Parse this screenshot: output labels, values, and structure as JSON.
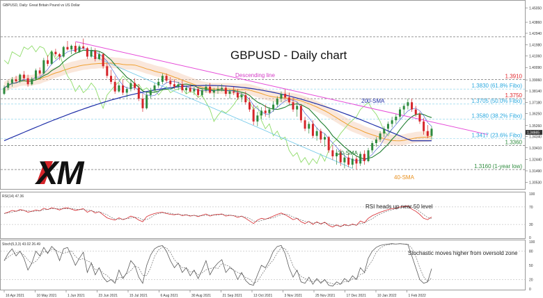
{
  "chart_data": {
    "type": "candlestick",
    "header": "GBPUSD, Daily: Great Britain Pound vs US Dollar",
    "title": "GBPUSD - Daily chart",
    "logo_text": "XM",
    "price_axis": {
      "ylim": [
        1.301,
        1.4525
      ],
      "ticks": [
        "1.45050",
        "1.43860",
        "1.42940",
        "1.41980",
        "1.41060",
        "1.40090",
        "1.39060",
        "1.38140",
        "1.37180",
        "1.36250",
        "1.35260",
        "1.34340",
        "1.33410",
        "1.32440",
        "1.31490",
        "1.30530"
      ],
      "current_price": "1.34665"
    },
    "date_axis": {
      "labels": [
        "16 Apr 2021",
        "10 May 2021",
        "1 Jun 2021",
        "23 Jun 2021",
        "15 Jul 2021",
        "6 Aug 2021",
        "30 Aug 2021",
        "21 Sep 2021",
        "13 Oct 2021",
        "3 Nov 2021",
        "25 Nov 2021",
        "17 Dec 2021",
        "10 Jan 2022",
        "1 Feb 2022"
      ]
    },
    "candles": [
      [
        1.379,
        1.386,
        1.378,
        1.384
      ],
      [
        1.384,
        1.39,
        1.382,
        1.388
      ],
      [
        1.388,
        1.393,
        1.385,
        1.391
      ],
      [
        1.391,
        1.394,
        1.388,
        1.3895
      ],
      [
        1.3895,
        1.396,
        1.388,
        1.395
      ],
      [
        1.395,
        1.398,
        1.39,
        1.392
      ],
      [
        1.392,
        1.395,
        1.385,
        1.387
      ],
      [
        1.387,
        1.393,
        1.386,
        1.3915
      ],
      [
        1.3915,
        1.4,
        1.39,
        1.3985
      ],
      [
        1.3985,
        1.401,
        1.394,
        1.396
      ],
      [
        1.396,
        1.409,
        1.395,
        1.407
      ],
      [
        1.407,
        1.411,
        1.402,
        1.404
      ],
      [
        1.404,
        1.415,
        1.403,
        1.414
      ],
      [
        1.414,
        1.4165,
        1.41,
        1.412
      ],
      [
        1.412,
        1.413,
        1.407,
        1.41
      ],
      [
        1.41,
        1.419,
        1.409,
        1.418
      ],
      [
        1.418,
        1.423,
        1.415,
        1.416
      ],
      [
        1.416,
        1.42,
        1.412,
        1.419
      ],
      [
        1.419,
        1.422,
        1.413,
        1.414
      ],
      [
        1.414,
        1.42,
        1.413,
        1.4185
      ],
      [
        1.4185,
        1.425,
        1.416,
        1.417
      ],
      [
        1.417,
        1.418,
        1.408,
        1.41
      ],
      [
        1.41,
        1.418,
        1.409,
        1.415
      ],
      [
        1.415,
        1.417,
        1.406,
        1.408
      ],
      [
        1.408,
        1.414,
        1.407,
        1.412
      ],
      [
        1.412,
        1.413,
        1.4,
        1.402
      ],
      [
        1.402,
        1.405,
        1.392,
        1.394
      ],
      [
        1.394,
        1.399,
        1.387,
        1.389
      ],
      [
        1.389,
        1.394,
        1.379,
        1.381
      ],
      [
        1.381,
        1.388,
        1.38,
        1.386
      ],
      [
        1.386,
        1.391,
        1.378,
        1.38
      ],
      [
        1.38,
        1.385,
        1.376,
        1.383
      ],
      [
        1.383,
        1.39,
        1.381,
        1.388
      ],
      [
        1.388,
        1.392,
        1.382,
        1.384
      ],
      [
        1.384,
        1.387,
        1.373,
        1.375
      ],
      [
        1.375,
        1.379,
        1.364,
        1.367
      ],
      [
        1.367,
        1.38,
        1.366,
        1.378
      ],
      [
        1.378,
        1.384,
        1.375,
        1.382
      ],
      [
        1.382,
        1.388,
        1.38,
        1.386
      ],
      [
        1.386,
        1.392,
        1.384,
        1.389
      ],
      [
        1.389,
        1.396,
        1.387,
        1.394
      ],
      [
        1.394,
        1.396,
        1.388,
        1.39
      ],
      [
        1.39,
        1.393,
        1.385,
        1.387
      ],
      [
        1.387,
        1.391,
        1.383,
        1.385
      ],
      [
        1.385,
        1.389,
        1.382,
        1.387
      ],
      [
        1.387,
        1.39,
        1.38,
        1.382
      ],
      [
        1.382,
        1.386,
        1.379,
        1.384
      ],
      [
        1.384,
        1.387,
        1.38,
        1.381
      ],
      [
        1.381,
        1.385,
        1.378,
        1.383
      ],
      [
        1.383,
        1.385,
        1.376,
        1.378
      ],
      [
        1.378,
        1.384,
        1.376,
        1.382
      ],
      [
        1.382,
        1.387,
        1.38,
        1.385
      ],
      [
        1.385,
        1.388,
        1.379,
        1.38
      ],
      [
        1.38,
        1.384,
        1.376,
        1.382
      ],
      [
        1.382,
        1.386,
        1.379,
        1.383
      ],
      [
        1.383,
        1.387,
        1.381,
        1.384
      ],
      [
        1.384,
        1.386,
        1.377,
        1.379
      ],
      [
        1.379,
        1.383,
        1.375,
        1.381
      ],
      [
        1.381,
        1.385,
        1.378,
        1.38
      ],
      [
        1.38,
        1.383,
        1.374,
        1.376
      ],
      [
        1.376,
        1.38,
        1.372,
        1.378
      ],
      [
        1.378,
        1.381,
        1.37,
        1.372
      ],
      [
        1.372,
        1.376,
        1.364,
        1.366
      ],
      [
        1.366,
        1.37,
        1.353,
        1.356
      ],
      [
        1.356,
        1.364,
        1.352,
        1.361
      ],
      [
        1.361,
        1.368,
        1.358,
        1.365
      ],
      [
        1.365,
        1.37,
        1.36,
        1.363
      ],
      [
        1.363,
        1.368,
        1.359,
        1.366
      ],
      [
        1.366,
        1.373,
        1.364,
        1.37
      ],
      [
        1.37,
        1.377,
        1.368,
        1.375
      ],
      [
        1.375,
        1.381,
        1.372,
        1.379
      ],
      [
        1.379,
        1.383,
        1.374,
        1.376
      ],
      [
        1.376,
        1.38,
        1.37,
        1.372
      ],
      [
        1.372,
        1.376,
        1.364,
        1.366
      ],
      [
        1.366,
        1.372,
        1.36,
        1.369
      ],
      [
        1.369,
        1.37,
        1.355,
        1.357
      ],
      [
        1.357,
        1.36,
        1.348,
        1.35
      ],
      [
        1.35,
        1.356,
        1.346,
        1.354
      ],
      [
        1.354,
        1.357,
        1.342,
        1.344
      ],
      [
        1.344,
        1.351,
        1.34,
        1.348
      ],
      [
        1.348,
        1.35,
        1.338,
        1.341
      ],
      [
        1.341,
        1.346,
        1.335,
        1.343
      ],
      [
        1.343,
        1.344,
        1.33,
        1.332
      ],
      [
        1.332,
        1.336,
        1.324,
        1.327
      ],
      [
        1.327,
        1.333,
        1.32,
        1.33
      ],
      [
        1.33,
        1.333,
        1.319,
        1.322
      ],
      [
        1.322,
        1.329,
        1.317,
        1.326
      ],
      [
        1.326,
        1.33,
        1.318,
        1.32
      ],
      [
        1.32,
        1.328,
        1.317,
        1.325
      ],
      [
        1.325,
        1.327,
        1.316,
        1.321
      ],
      [
        1.321,
        1.331,
        1.319,
        1.329
      ],
      [
        1.329,
        1.332,
        1.32,
        1.323
      ],
      [
        1.323,
        1.334,
        1.322,
        1.332
      ],
      [
        1.332,
        1.34,
        1.33,
        1.338
      ],
      [
        1.338,
        1.343,
        1.335,
        1.341
      ],
      [
        1.341,
        1.348,
        1.339,
        1.346
      ],
      [
        1.346,
        1.352,
        1.343,
        1.35
      ],
      [
        1.35,
        1.356,
        1.347,
        1.354
      ],
      [
        1.354,
        1.36,
        1.351,
        1.357
      ],
      [
        1.357,
        1.362,
        1.354,
        1.36
      ],
      [
        1.36,
        1.368,
        1.358,
        1.366
      ],
      [
        1.366,
        1.371,
        1.362,
        1.369
      ],
      [
        1.369,
        1.375,
        1.366,
        1.372
      ],
      [
        1.372,
        1.375,
        1.364,
        1.366
      ],
      [
        1.366,
        1.369,
        1.36,
        1.362
      ],
      [
        1.362,
        1.364,
        1.354,
        1.356
      ],
      [
        1.356,
        1.359,
        1.345,
        1.348
      ],
      [
        1.348,
        1.353,
        1.342,
        1.344
      ],
      [
        1.344,
        1.352,
        1.341,
        1.35
      ]
    ],
    "levels": [
      {
        "label": "1.3910",
        "value": 1.391,
        "color": "#e0262b"
      },
      {
        "label": "1.3830 (61.8% Fibo)",
        "value": 1.383,
        "color": "#2aa9df"
      },
      {
        "label": "1.3750",
        "value": 1.375,
        "color": "#e0262b"
      },
      {
        "label": "1.3705 (50.0% Fibo)",
        "value": 1.3705,
        "color": "#2aa9df"
      },
      {
        "label": "1.3580 (38.2% Fibo)",
        "value": 1.358,
        "color": "#2aa9df"
      },
      {
        "label": "1.3417 (23.6% Fibo)",
        "value": 1.3417,
        "color": "#2aa9df"
      },
      {
        "label": "1.3360",
        "value": 1.336,
        "color": "#2e8b3e"
      },
      {
        "label": "1.3160 (1-year low)",
        "value": 1.316,
        "color": "#2e8b3e"
      }
    ],
    "annotations": {
      "descending_line": "Descending line",
      "sma200": "200-SMA",
      "sma20": "20-SMA",
      "sma40": "40-SMA"
    },
    "series_colors": {
      "up": "#2e8b3e",
      "down": "#d6252a",
      "sma200": "#1f2fa8",
      "sma20": "#1e7d2e",
      "sma40": "#f0a030",
      "trendline": "#e64ad8",
      "lagging": "#8fdc6a",
      "cloud": "#f5c9b0"
    },
    "rsi": {
      "label": "RSI(14) 47.36",
      "annotation": "RSI heads up near 50 level",
      "ylim": [
        0,
        100
      ],
      "ticks": [
        "100",
        "70",
        "30",
        "0"
      ],
      "values": [
        55,
        58,
        62,
        60,
        64,
        62,
        58,
        60,
        63,
        61,
        67,
        64,
        68,
        66,
        63,
        67,
        68,
        65,
        62,
        64,
        66,
        58,
        62,
        56,
        59,
        52,
        45,
        42,
        40,
        45,
        41,
        44,
        49,
        46,
        40,
        36,
        48,
        52,
        55,
        57,
        58,
        55,
        53,
        52,
        54,
        50,
        52,
        49,
        51,
        48,
        51,
        54,
        49,
        52,
        53,
        54,
        49,
        51,
        50,
        46,
        49,
        44,
        38,
        32,
        40,
        44,
        42,
        45,
        49,
        53,
        56,
        52,
        47,
        41,
        44,
        36,
        32,
        37,
        30,
        36,
        31,
        35,
        28,
        24,
        29,
        25,
        30,
        27,
        31,
        28,
        38,
        34,
        44,
        50,
        54,
        58,
        61,
        64,
        66,
        67,
        70,
        71,
        72,
        65,
        60,
        53,
        44,
        41,
        47
      ]
    },
    "stoch": {
      "label": "Stoch(5,3,3) 43.02 26.49",
      "annotation": "Stochastic moves higher from oversold zone",
      "ylim": [
        0,
        100
      ],
      "ticks": [
        "100",
        "80",
        "50",
        "20",
        "0"
      ],
      "values": [
        60,
        75,
        85,
        70,
        80,
        65,
        40,
        55,
        80,
        70,
        88,
        75,
        90,
        82,
        60,
        85,
        88,
        70,
        50,
        65,
        78,
        35,
        55,
        30,
        45,
        25,
        15,
        20,
        12,
        40,
        22,
        35,
        60,
        50,
        25,
        12,
        50,
        72,
        85,
        90,
        92,
        80,
        60,
        45,
        55,
        35,
        45,
        28,
        40,
        22,
        40,
        60,
        30,
        45,
        55,
        62,
        35,
        45,
        40,
        20,
        35,
        18,
        10,
        8,
        30,
        50,
        45,
        60,
        80,
        90,
        92,
        75,
        45,
        25,
        40,
        15,
        12,
        25,
        10,
        22,
        12,
        20,
        8,
        6,
        15,
        10,
        22,
        15,
        28,
        20,
        45,
        35,
        65,
        80,
        88,
        92,
        94,
        95,
        96,
        95,
        96,
        95,
        94,
        70,
        45,
        20,
        12,
        15,
        43
      ]
    }
  }
}
